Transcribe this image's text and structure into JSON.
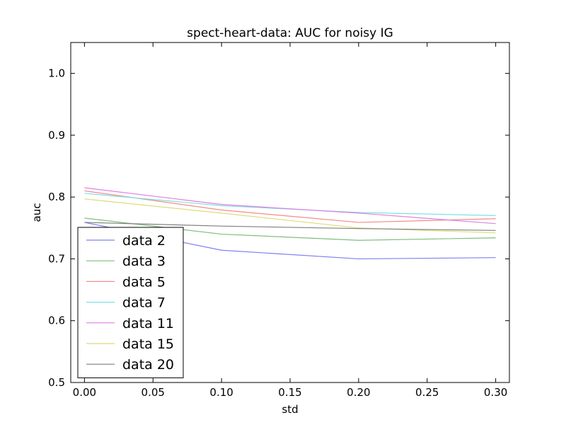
{
  "chart_data": {
    "type": "line",
    "title": "spect-heart-data: AUC for noisy IG",
    "xlabel": "std",
    "ylabel": "auc",
    "xlim": [
      -0.01,
      0.31
    ],
    "ylim": [
      0.5,
      1.05
    ],
    "x_ticks": [
      "0.00",
      "0.05",
      "0.10",
      "0.15",
      "0.20",
      "0.25",
      "0.30"
    ],
    "y_ticks": [
      "0.5",
      "0.6",
      "0.7",
      "0.8",
      "0.9",
      "1.0"
    ],
    "grid": false,
    "legend_position": "lower-left",
    "x": [
      0.0,
      0.1,
      0.2,
      0.3
    ],
    "series": [
      {
        "name": "data 2",
        "color": "#7f7ff5",
        "values": [
          0.759,
          0.714,
          0.7,
          0.702
        ]
      },
      {
        "name": "data 3",
        "color": "#7fbf7f",
        "values": [
          0.766,
          0.74,
          0.73,
          0.734
        ]
      },
      {
        "name": "data 5",
        "color": "#f58a8a",
        "values": [
          0.81,
          0.779,
          0.759,
          0.765
        ]
      },
      {
        "name": "data 7",
        "color": "#80e0e0",
        "values": [
          0.806,
          0.786,
          0.775,
          0.77
        ]
      },
      {
        "name": "data 11",
        "color": "#e07fe0",
        "values": [
          0.815,
          0.788,
          0.774,
          0.757
        ]
      },
      {
        "name": "data 15",
        "color": "#dcdc7a",
        "values": [
          0.797,
          0.774,
          0.75,
          0.742
        ]
      },
      {
        "name": "data 20",
        "color": "#7f7f7f",
        "values": [
          0.759,
          0.753,
          0.749,
          0.746
        ]
      }
    ]
  }
}
